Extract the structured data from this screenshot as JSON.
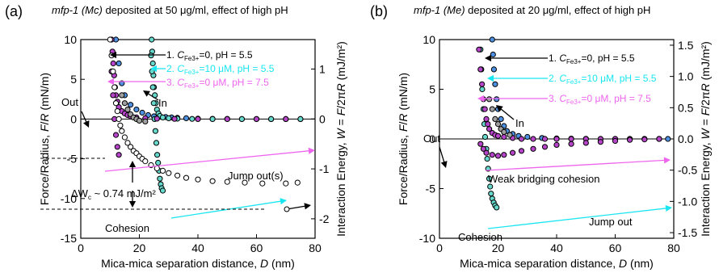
{
  "colors": {
    "black": "#000000",
    "cyan": "#19e6f0",
    "magenta": "#ee66ee",
    "gray": "#999999",
    "blue_fill": "#4d8fe0",
    "cyan_fill": "#66d8cc",
    "magenta_fill": "#b544c8",
    "gray_fill": "#a0a0a0"
  },
  "chart_data": [
    {
      "type": "scatter",
      "panel_tag": "(a)",
      "title": "mfp-1 (Mc) deposited at 50 μg/ml, effect of high pH",
      "title_italic": "mfp-1 (Mc)",
      "title_rest": " deposited at 50 μg/ml, effect of high pH",
      "xlabel": "Mica-mica separation distance, D (nm)",
      "ylabel": "Force/Radius, F/R (mN/m)",
      "y2label": "Interaction Energy, W = F/2πR (mJ/m²)",
      "xlim": [
        0,
        80
      ],
      "ylim": [
        -15,
        10
      ],
      "y2lim": [
        -2.39,
        1.59
      ],
      "x_ticks": [
        "0",
        "20",
        "40",
        "60",
        "80"
      ],
      "y_ticks": [
        "-15",
        "-10",
        "-5",
        "0",
        "5",
        "10"
      ],
      "y2_ticks": [
        "-2",
        "-1",
        "0",
        "1"
      ],
      "legend": [
        {
          "num": "1.",
          "sub": "Fe3+",
          "rest": "=0, pH = 5.5"
        },
        {
          "num": "2.",
          "sub": "Fe3+",
          "rest": "=10 μM, pH = 5.5"
        },
        {
          "num": "3.",
          "sub": "Fe3+",
          "rest": "=0 μM, pH = 7.5"
        }
      ],
      "annotations": {
        "out": "Out",
        "in": "In",
        "jump": "Jump out(s)",
        "delta": "ΔW",
        "delta_sub": "c",
        "delta_val": " ~ 0.74 mJ/m²",
        "cohesion": "Cohesion"
      },
      "series": [
        {
          "name": "1. C_Fe3+=0, pH = 5.5",
          "color": "#4d8fe0",
          "x": [
            12,
            13,
            14,
            15,
            17,
            19,
            21,
            23,
            25,
            27,
            29,
            31,
            33,
            36,
            40,
            45,
            50,
            55,
            60,
            65,
            70,
            75
          ],
          "y": [
            10,
            7,
            4.5,
            3,
            1.8,
            1.2,
            0.8,
            0.5,
            0.35,
            0.3,
            0.25,
            0.2,
            0.15,
            0.1,
            0.05,
            0.03,
            0.02,
            0.01,
            0.01,
            0,
            0,
            0
          ]
        },
        {
          "name": "2. C_Fe3+=10 μM, pH = 5.5 (in)",
          "color": "#66d8cc",
          "x": [
            24.2,
            24.4,
            24.6,
            24.8,
            25,
            25.3,
            25.6,
            26,
            26.5,
            27,
            28,
            30,
            33,
            38,
            45,
            55,
            65,
            75
          ],
          "y": [
            10,
            8.5,
            7,
            5.5,
            4,
            3,
            2,
            1.2,
            0.7,
            0.4,
            0.2,
            0.1,
            0.05,
            0.02,
            0,
            0,
            0,
            0
          ]
        },
        {
          "name": "2. C_Fe3+=10 μM, pH = 5.5 (out)",
          "color": "#66d8cc",
          "x": [
            24,
            24.3,
            24.6,
            24.9,
            25.2,
            25.5,
            25.8,
            26.1,
            26.4,
            26.7,
            27,
            27.3,
            27.6,
            28
          ],
          "y": [
            8,
            6,
            4,
            2,
            0,
            -1.5,
            -3,
            -4.5,
            -5.5,
            -6.5,
            -7.5,
            -8.2,
            -8.7,
            -9
          ]
        },
        {
          "name": "3. C_Fe3+=0 μM, pH = 7.5 (in)",
          "color": "#b544c8",
          "x": [
            10.5,
            10.8,
            11.1,
            11.4,
            11.7,
            12,
            12.5,
            13,
            14,
            15,
            16,
            17,
            19,
            22,
            26,
            32,
            40,
            50,
            60,
            70
          ],
          "y": [
            10,
            8.5,
            7,
            5.5,
            4,
            3,
            2.2,
            1.5,
            1,
            0.7,
            0.5,
            0.35,
            0.2,
            0.1,
            0.05,
            0.02,
            0,
            0,
            0,
            0
          ]
        },
        {
          "name": "3. C_Fe3+=0 μM, pH = 7.5 (out)",
          "color": "#b544c8",
          "x": [
            10.5,
            11,
            11.5,
            12,
            12.5,
            13
          ],
          "y": [
            6,
            3,
            0,
            -2,
            -3.5,
            -4.5
          ]
        },
        {
          "name": "gray",
          "color": "#a0a0a0",
          "x": [
            14,
            15,
            16,
            17,
            18,
            19,
            20,
            22
          ],
          "y": [
            3,
            2,
            1.2,
            0.6,
            0.2,
            0,
            -0.2,
            -0.3
          ]
        },
        {
          "name": "cohesion (out)",
          "color": "#ffffff",
          "x": [
            10,
            10.5,
            11,
            11.5,
            12,
            12.5,
            13,
            13.5,
            14,
            15,
            16,
            17,
            18,
            19,
            20,
            21,
            22,
            24,
            26,
            28,
            30,
            33,
            36,
            40,
            45,
            50,
            56,
            62,
            70,
            74
          ],
          "y": [
            10,
            8,
            6,
            4,
            2,
            1,
            0,
            -0.8,
            -1.5,
            -2.3,
            -3,
            -3.5,
            -4,
            -4.3,
            -4.7,
            -5,
            -5.3,
            -5.8,
            -6.2,
            -6.5,
            -6.8,
            -7.1,
            -7.4,
            -7.6,
            -7.8,
            -7.9,
            -8,
            -8.1,
            -8.1,
            -8
          ]
        }
      ]
    },
    {
      "type": "scatter",
      "panel_tag": "(b)",
      "title": "mfp-1 (Me) deposited at 20 μg/ml, effect of high pH",
      "title_italic": "mfp-1 (Me)",
      "title_rest": " deposited at 20 μg/ml, effect of high pH",
      "xlabel": "Mica-mica separation distance, D (nm)",
      "ylabel": "Force/Radius, F/R (mN/m)",
      "y2label": "Interaction Energy, W = F/2πR (mJ/m²)",
      "xlim": [
        0,
        80
      ],
      "ylim": [
        -10,
        10
      ],
      "y2lim": [
        -1.59,
        1.59
      ],
      "x_ticks": [
        "0",
        "20",
        "40",
        "60",
        "80"
      ],
      "y_ticks": [
        "-10",
        "-5",
        "0",
        "5",
        "10"
      ],
      "y2_ticks": [
        "-1.5",
        "-1.0",
        "-0.5",
        "0.0",
        "0.5",
        "1.0",
        "1.5"
      ],
      "legend": [
        {
          "num": "1.",
          "sub": "Fe3+",
          "rest": "=0, pH = 5.5"
        },
        {
          "num": "2.",
          "sub": "Fe3+",
          "rest": "=10 μM, pH = 5.5"
        },
        {
          "num": "3.",
          "sub": "Fe3+",
          "rest": "=0 μM, pH = 7.5"
        }
      ],
      "annotations": {
        "out": "Out",
        "in": "In",
        "jump": "Jump out",
        "weak": "Weak bridging cohesion",
        "cohesion": "Cohesion"
      },
      "series": [
        {
          "name": "1. C_Fe3+=0, pH = 5.5",
          "color": "#4d8fe0",
          "x": [
            18,
            18.3,
            18.6,
            19,
            19.5,
            20,
            21,
            22,
            23,
            25,
            27,
            30,
            35,
            40,
            45,
            50,
            55,
            60,
            65,
            70,
            75,
            78
          ],
          "y": [
            10,
            8.5,
            7,
            5.5,
            4,
            3,
            2,
            1.3,
            0.8,
            0.5,
            0.3,
            0.2,
            0.1,
            0.05,
            0.03,
            0.02,
            0,
            0,
            0,
            0,
            0,
            0
          ]
        },
        {
          "name": "2. C_Fe3+=10 μM, pH = 5.5",
          "color": "#66d8cc",
          "x": [
            14,
            14.3,
            14.6,
            15,
            15.3,
            15.6,
            16,
            16.3,
            16.6,
            17,
            17.3,
            17.6,
            18,
            18.5,
            19,
            19.5
          ],
          "y": [
            9,
            7,
            5,
            3,
            1.5,
            0.2,
            -1,
            -2,
            -3,
            -4,
            -4.8,
            -5.5,
            -6,
            -6.4,
            -6.7,
            -6.9
          ]
        },
        {
          "name": "3. C_Fe3+=0 μM, pH = 7.5",
          "color": "#b544c8",
          "x": [
            13.5,
            14,
            14.5,
            15,
            15.5,
            16,
            16.5,
            17,
            18,
            19,
            20,
            22,
            25,
            28,
            32,
            36,
            40,
            45,
            50,
            55,
            60,
            65,
            70,
            75
          ],
          "y": [
            9,
            7,
            5.5,
            4,
            3,
            2,
            1.5,
            1,
            0.6,
            0.4,
            0.3,
            0.2,
            0.1,
            0,
            0,
            0,
            0,
            0,
            0,
            0,
            0,
            0,
            0,
            0
          ]
        },
        {
          "name": "gray",
          "color": "#a0a0a0",
          "x": [
            17,
            18,
            19,
            20,
            21,
            22,
            24
          ],
          "y": [
            4,
            3,
            2,
            1.5,
            1,
            0.7,
            0.4
          ]
        },
        {
          "name": "weak bridging (out)",
          "color": "#b544c8",
          "x": [
            14,
            15,
            16,
            18,
            20,
            22,
            25,
            28,
            32,
            36,
            40,
            45,
            50,
            55,
            60,
            65,
            70,
            75
          ],
          "y": [
            -0.5,
            -1,
            -1.4,
            -1.6,
            -1.7,
            -1.6,
            -1.4,
            -1.2,
            -1,
            -0.8,
            -0.6,
            -0.5,
            -0.4,
            -0.3,
            -0.2,
            -0.1,
            -0.05,
            0
          ]
        }
      ]
    }
  ]
}
